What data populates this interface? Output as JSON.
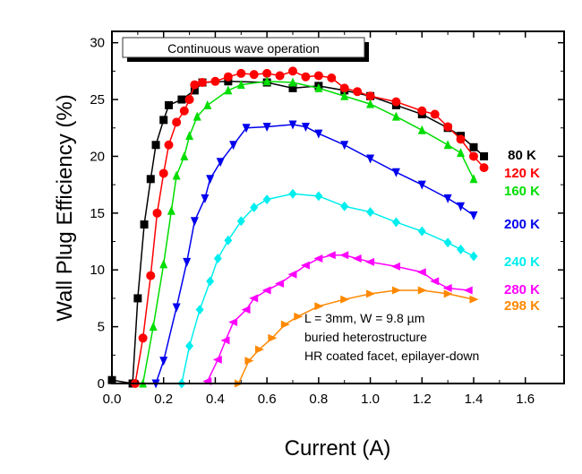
{
  "chart_data": {
    "type": "scatter",
    "xlabel": "Current (A)",
    "ylabel": "Wall Plug Efficiency (%)",
    "xlim": [
      0,
      1.75
    ],
    "ylim": [
      0,
      31
    ],
    "xticks": [
      "0.0",
      "0.2",
      "0.4",
      "0.6",
      "0.8",
      "1.0",
      "1.2",
      "1.4",
      "1.6"
    ],
    "yticks": [
      "0",
      "5",
      "10",
      "15",
      "20",
      "25",
      "30"
    ],
    "grid": false,
    "legend_box": "Continuous wave operation",
    "annotation": [
      "L = 3mm, W = 9.8 µm",
      "buried heterostructure",
      "HR coated facet, epilayer-down"
    ],
    "series": [
      {
        "name": "80 K",
        "color": "#000000",
        "marker": "square",
        "x": [
          0.0,
          0.08,
          0.1,
          0.125,
          0.15,
          0.17,
          0.2,
          0.22,
          0.27,
          0.32,
          0.35,
          0.45,
          0.6,
          0.7,
          0.8,
          0.9,
          1.0,
          1.1,
          1.2,
          1.3,
          1.35,
          1.4,
          1.44
        ],
        "y": [
          0.3,
          0,
          7.5,
          14,
          18,
          21,
          23.2,
          24.5,
          25,
          25.8,
          26.5,
          26.6,
          26.5,
          26,
          26.2,
          25.8,
          25.3,
          24.5,
          23.7,
          22.5,
          21.8,
          20.8,
          20
        ]
      },
      {
        "name": "120 K",
        "color": "#ff0000",
        "marker": "circle",
        "x": [
          0.09,
          0.12,
          0.15,
          0.175,
          0.2,
          0.22,
          0.25,
          0.28,
          0.3,
          0.32,
          0.35,
          0.4,
          0.45,
          0.5,
          0.55,
          0.6,
          0.65,
          0.7,
          0.75,
          0.8,
          0.85,
          0.9,
          0.95,
          1.0,
          1.1,
          1.2,
          1.25,
          1.3,
          1.35,
          1.4,
          1.44
        ],
        "y": [
          0,
          4,
          9.5,
          15,
          18.5,
          21,
          23,
          24,
          25,
          26.3,
          26.5,
          26.6,
          27,
          27.3,
          27.2,
          27.3,
          27.1,
          27.5,
          27,
          27.1,
          26.9,
          26,
          25.7,
          25.3,
          24.8,
          24,
          23.7,
          22.6,
          21.5,
          20,
          19
        ]
      },
      {
        "name": "160 K",
        "color": "#00dd00",
        "marker": "triangle-up",
        "x": [
          0.12,
          0.16,
          0.2,
          0.23,
          0.25,
          0.28,
          0.3,
          0.33,
          0.37,
          0.45,
          0.5,
          0.6,
          0.7,
          0.8,
          0.9,
          1.0,
          1.1,
          1.2,
          1.3,
          1.35,
          1.4
        ],
        "y": [
          0,
          5,
          10.5,
          15.2,
          18.3,
          20,
          21.8,
          23.5,
          24.5,
          25.8,
          26.3,
          26.6,
          26.5,
          26,
          25.3,
          24.6,
          23.5,
          22.3,
          21,
          20.3,
          18
        ]
      },
      {
        "name": "200 K",
        "color": "#0000ee",
        "marker": "triangle-down",
        "x": [
          0.17,
          0.2,
          0.25,
          0.29,
          0.32,
          0.36,
          0.38,
          0.42,
          0.47,
          0.52,
          0.6,
          0.7,
          0.75,
          0.8,
          0.9,
          1.0,
          1.1,
          1.2,
          1.3,
          1.35,
          1.4
        ],
        "y": [
          0,
          2,
          6.7,
          10.7,
          14.3,
          16.3,
          18,
          19.5,
          21,
          22.5,
          22.6,
          22.8,
          22.6,
          22,
          21,
          19.8,
          18.6,
          17.5,
          16.3,
          15.6,
          14.8
        ]
      },
      {
        "name": "240 K",
        "color": "#00eeee",
        "marker": "diamond",
        "x": [
          0.27,
          0.3,
          0.34,
          0.38,
          0.41,
          0.45,
          0.5,
          0.55,
          0.6,
          0.7,
          0.8,
          0.9,
          1.0,
          1.1,
          1.2,
          1.3,
          1.35,
          1.4
        ],
        "y": [
          0,
          3.3,
          6.5,
          9,
          11,
          12.6,
          14.3,
          15.5,
          16.2,
          16.7,
          16.5,
          15.6,
          15.1,
          14.2,
          13.4,
          12.4,
          11.8,
          11.2
        ]
      },
      {
        "name": "280 K",
        "color": "#ff00ff",
        "marker": "triangle-left",
        "x": [
          0.37,
          0.41,
          0.44,
          0.47,
          0.52,
          0.55,
          0.6,
          0.65,
          0.7,
          0.75,
          0.8,
          0.85,
          0.9,
          0.95,
          1.0,
          1.1,
          1.2,
          1.25,
          1.3,
          1.38
        ],
        "y": [
          0.2,
          2.1,
          3.8,
          5.4,
          6.5,
          7.5,
          8.2,
          8.8,
          9.6,
          10.4,
          11,
          11.3,
          11.3,
          11,
          10.7,
          10.3,
          9.8,
          9,
          8.4,
          8.2
        ]
      },
      {
        "name": "298 K",
        "color": "#ff8800",
        "marker": "triangle-right",
        "x": [
          0.49,
          0.53,
          0.57,
          0.62,
          0.67,
          0.72,
          0.8,
          0.9,
          1.0,
          1.1,
          1.2,
          1.3,
          1.4
        ],
        "y": [
          0,
          2,
          3,
          4,
          5.2,
          5.9,
          6.8,
          7.4,
          7.9,
          8.2,
          8.2,
          7.9,
          7.4
        ]
      }
    ]
  }
}
